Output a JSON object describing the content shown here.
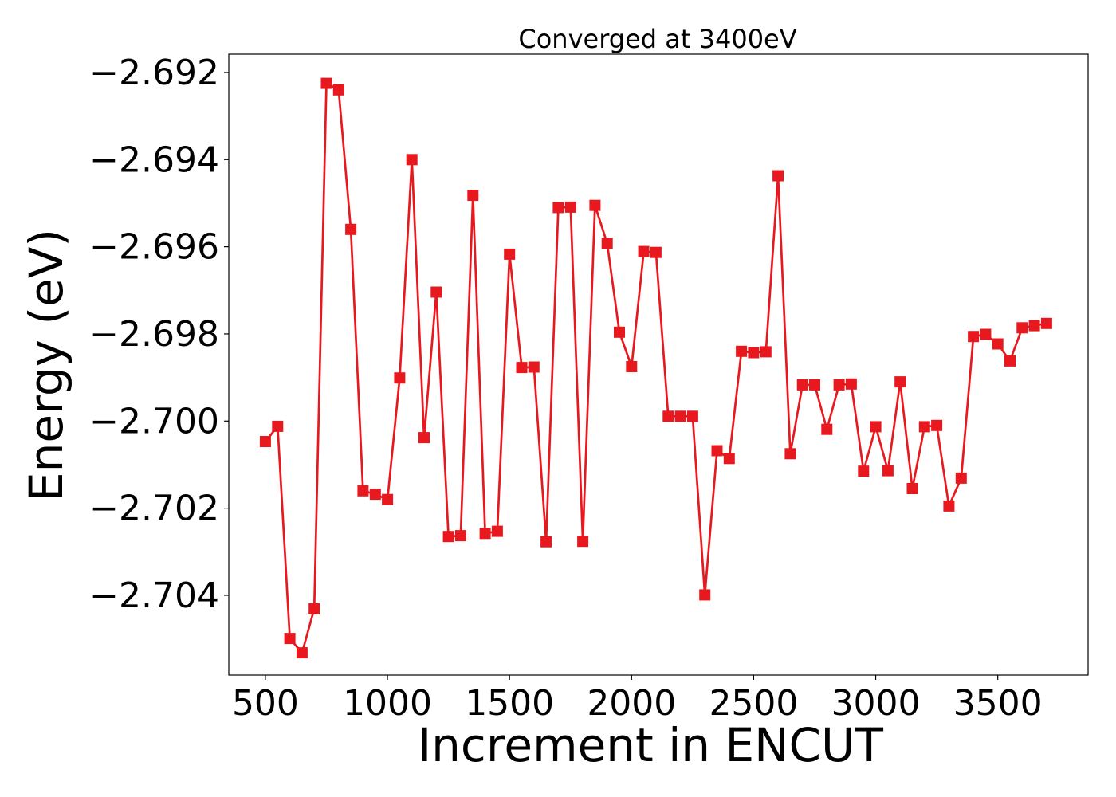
{
  "chart_data": {
    "type": "line",
    "title": "Converged at 3400eV",
    "xlabel": "Increment in ENCUT",
    "ylabel": "Energy (eV)",
    "xlim": [
      350,
      3870
    ],
    "ylim": [
      -2.70583,
      -2.69158
    ],
    "x_ticks": [
      500,
      1000,
      1500,
      2000,
      2500,
      3000,
      3500
    ],
    "x_tick_labels": [
      "500",
      "1000",
      "1500",
      "2000",
      "2500",
      "3000",
      "3500"
    ],
    "y_ticks": [
      -2.692,
      -2.694,
      -2.696,
      -2.698,
      -2.7,
      -2.702,
      -2.704
    ],
    "y_tick_labels": [
      "−2.692",
      "−2.694",
      "−2.696",
      "−2.698",
      "−2.700",
      "−2.702",
      "−2.704"
    ],
    "grid": false,
    "marker": "square",
    "color": "#e8191e",
    "x": [
      500,
      550,
      600,
      650,
      700,
      750,
      800,
      850,
      900,
      950,
      1000,
      1050,
      1100,
      1150,
      1200,
      1250,
      1300,
      1350,
      1400,
      1450,
      1500,
      1550,
      1600,
      1650,
      1700,
      1750,
      1800,
      1850,
      1900,
      1950,
      2000,
      2050,
      2100,
      2150,
      2200,
      2250,
      2300,
      2350,
      2400,
      2450,
      2500,
      2550,
      2600,
      2650,
      2700,
      2750,
      2800,
      2850,
      2900,
      2950,
      3000,
      3050,
      3100,
      3150,
      3200,
      3250,
      3300,
      3350,
      3400,
      3450,
      3500,
      3550,
      3600,
      3650,
      3700
    ],
    "y": [
      -2.70047,
      -2.70012,
      -2.70499,
      -2.70532,
      -2.70431,
      -2.69225,
      -2.6924,
      -2.6956,
      -2.7016,
      -2.70168,
      -2.7018,
      -2.69901,
      -2.694,
      -2.70038,
      -2.69704,
      -2.70265,
      -2.70263,
      -2.69482,
      -2.70258,
      -2.70253,
      -2.69617,
      -2.69877,
      -2.69876,
      -2.70277,
      -2.6951,
      -2.69509,
      -2.70276,
      -2.69505,
      -2.69592,
      -2.69796,
      -2.69875,
      -2.69611,
      -2.69613,
      -2.69989,
      -2.69989,
      -2.69989,
      -2.70399,
      -2.70068,
      -2.70086,
      -2.6984,
      -2.69843,
      -2.69841,
      -2.69437,
      -2.70075,
      -2.69917,
      -2.69917,
      -2.70019,
      -2.69917,
      -2.69915,
      -2.70115,
      -2.70013,
      -2.70114,
      -2.6991,
      -2.70155,
      -2.70013,
      -2.7001,
      -2.70195,
      -2.70131,
      -2.69806,
      -2.69801,
      -2.69823,
      -2.69862,
      -2.69786,
      -2.69781,
      -2.69776
    ]
  }
}
